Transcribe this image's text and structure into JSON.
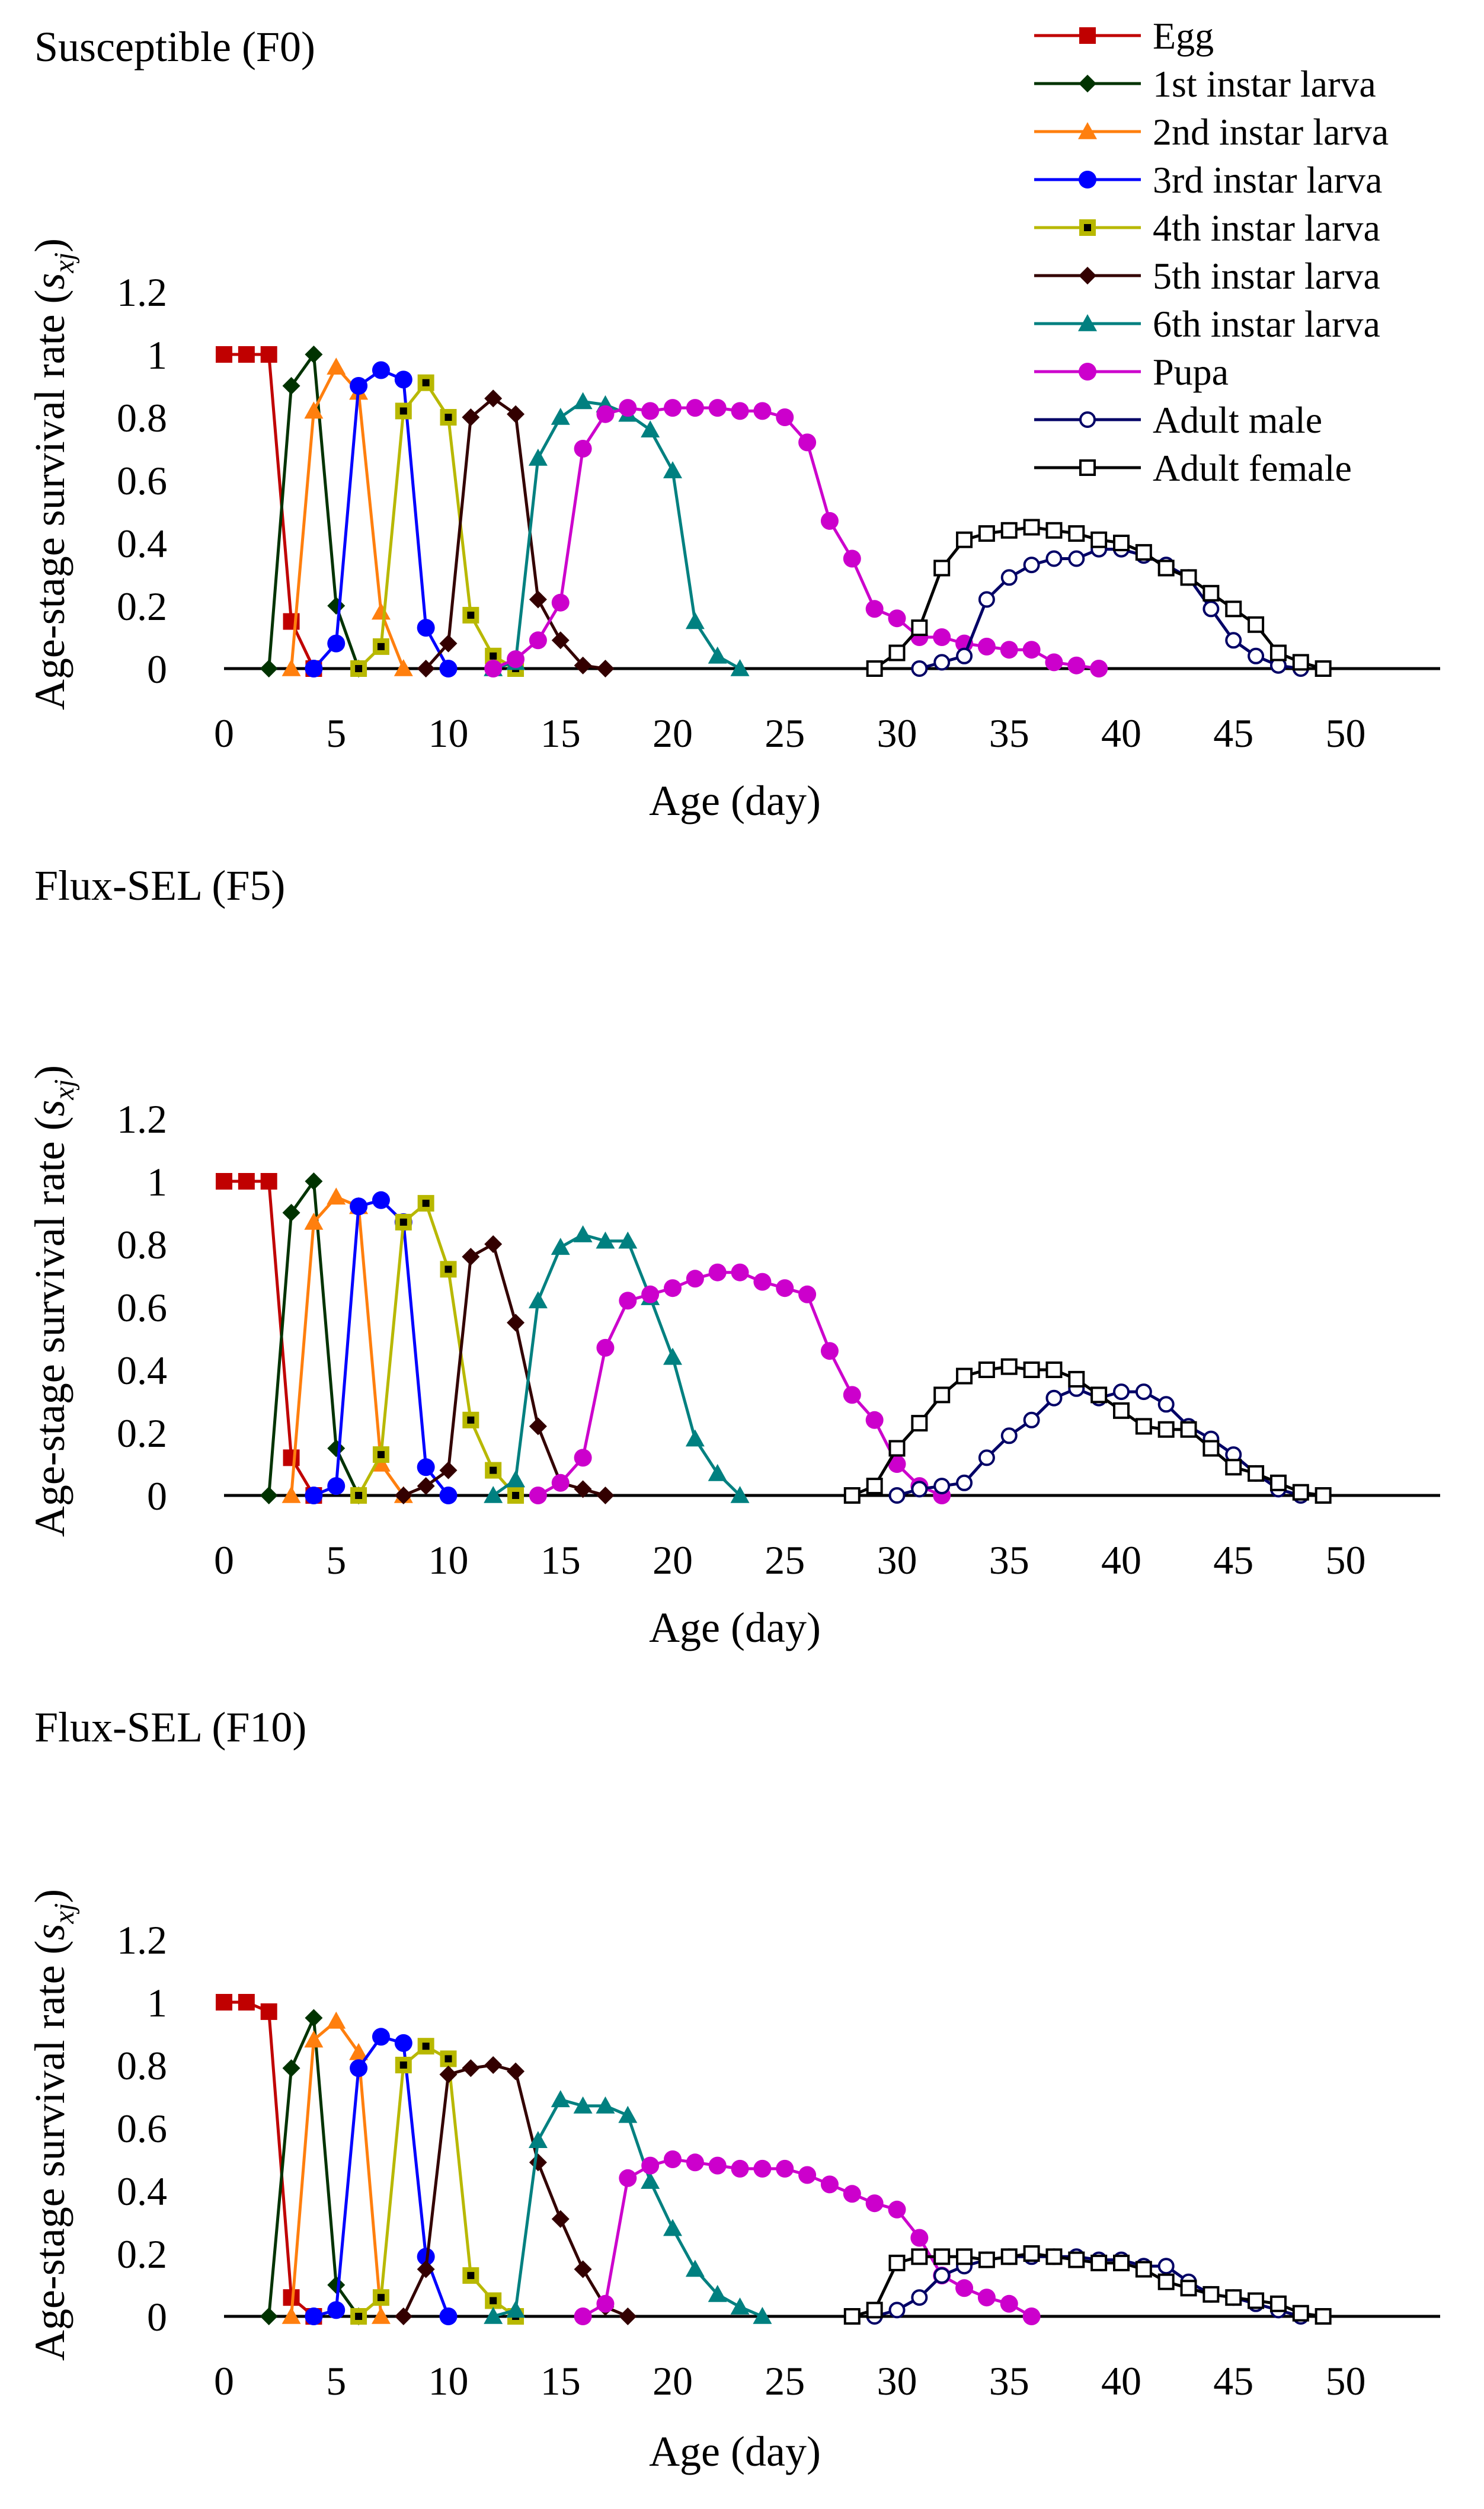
{
  "figure": {
    "legend": [
      {
        "name": "Egg",
        "color": "#C00000",
        "marker": "square"
      },
      {
        "name": "1st instar larva",
        "color": "#003300",
        "marker": "diamond"
      },
      {
        "name": "2nd instar larva",
        "color": "#FF7F0E",
        "marker": "triangle"
      },
      {
        "name": "3rd instar larva",
        "color": "#0000FF",
        "marker": "circle"
      },
      {
        "name": "4th instar larva",
        "color": "#B8B800",
        "marker": "square-dot"
      },
      {
        "name": "5th instar larva",
        "color": "#330000",
        "marker": "diamond"
      },
      {
        "name": "6th instar larva",
        "color": "#008080",
        "marker": "triangle"
      },
      {
        "name": "Pupa",
        "color": "#CC00CC",
        "marker": "circle"
      },
      {
        "name": "Adult male",
        "color": "#000066",
        "marker": "open-circle"
      },
      {
        "name": "Adult female",
        "color": "#000000",
        "marker": "open-square"
      }
    ]
  },
  "chart_data": [
    {
      "type": "line",
      "title": "Susceptible (F0)",
      "xlabel": "Age (day)",
      "ylabel": "Age-stage survival rate (s_xj)",
      "ylabel_main": "Age-stage survival rate (",
      "ylabel_sub": "xj",
      "ylabel_s": "s",
      "ylabel_end": ")",
      "xlim": [
        0,
        54
      ],
      "ylim": [
        0,
        1.2
      ],
      "xticks": [
        0,
        5,
        10,
        15,
        20,
        25,
        30,
        35,
        40,
        45,
        50
      ],
      "yticks": [
        0,
        0.2,
        0.4,
        0.6,
        0.8,
        1,
        1.2
      ],
      "series": [
        {
          "name": "Egg",
          "x": [
            0,
            1,
            2,
            3,
            4
          ],
          "y": [
            1,
            1,
            1,
            0.15,
            0
          ]
        },
        {
          "name": "1st instar larva",
          "x": [
            2,
            3,
            4,
            5,
            6
          ],
          "y": [
            0,
            0.9,
            1,
            0.2,
            0
          ]
        },
        {
          "name": "2nd instar larva",
          "x": [
            3,
            4,
            5,
            6,
            7,
            8
          ],
          "y": [
            0,
            0.82,
            0.96,
            0.88,
            0.18,
            0
          ]
        },
        {
          "name": "3rd instar larva",
          "x": [
            4,
            5,
            6,
            7,
            8,
            9,
            10
          ],
          "y": [
            0,
            0.08,
            0.9,
            0.95,
            0.92,
            0.13,
            0
          ]
        },
        {
          "name": "4th instar larva",
          "x": [
            6,
            7,
            8,
            9,
            10,
            11,
            12,
            13
          ],
          "y": [
            0,
            0.07,
            0.82,
            0.91,
            0.8,
            0.17,
            0.04,
            0
          ]
        },
        {
          "name": "5th instar larva",
          "x": [
            9,
            10,
            11,
            12,
            13,
            14,
            15,
            16,
            17
          ],
          "y": [
            0,
            0.08,
            0.8,
            0.86,
            0.81,
            0.22,
            0.09,
            0.01,
            0
          ]
        },
        {
          "name": "6th instar larva",
          "x": [
            12,
            13,
            14,
            15,
            16,
            17,
            18,
            19,
            20,
            21,
            22,
            23
          ],
          "y": [
            0,
            0.02,
            0.67,
            0.8,
            0.85,
            0.84,
            0.81,
            0.76,
            0.63,
            0.15,
            0.04,
            0
          ]
        },
        {
          "name": "Pupa",
          "x": [
            12,
            13,
            14,
            15,
            16,
            17,
            18,
            19,
            20,
            21,
            22,
            23,
            24,
            25,
            26,
            27,
            28,
            29,
            30,
            31,
            32,
            33,
            34,
            35,
            36,
            37,
            38,
            39
          ],
          "y": [
            0,
            0.03,
            0.09,
            0.21,
            0.7,
            0.81,
            0.83,
            0.82,
            0.83,
            0.83,
            0.83,
            0.82,
            0.82,
            0.8,
            0.72,
            0.47,
            0.35,
            0.19,
            0.16,
            0.1,
            0.1,
            0.08,
            0.07,
            0.06,
            0.06,
            0.02,
            0.01,
            0
          ]
        },
        {
          "name": "Adult male",
          "x": [
            31,
            32,
            33,
            34,
            35,
            36,
            37,
            38,
            39,
            40,
            41,
            42,
            43,
            44,
            45,
            46,
            47,
            48
          ],
          "y": [
            0,
            0.02,
            0.04,
            0.22,
            0.29,
            0.33,
            0.35,
            0.35,
            0.38,
            0.38,
            0.36,
            0.33,
            0.29,
            0.19,
            0.09,
            0.04,
            0.01,
            0
          ]
        },
        {
          "name": "Adult female",
          "x": [
            29,
            30,
            31,
            32,
            33,
            34,
            35,
            36,
            37,
            38,
            39,
            40,
            41,
            42,
            43,
            44,
            45,
            46,
            47,
            48,
            49
          ],
          "y": [
            0,
            0.05,
            0.13,
            0.32,
            0.41,
            0.43,
            0.44,
            0.45,
            0.44,
            0.43,
            0.41,
            0.4,
            0.37,
            0.32,
            0.29,
            0.24,
            0.19,
            0.14,
            0.05,
            0.02,
            0
          ]
        }
      ]
    },
    {
      "type": "line",
      "title": "Flux-SEL (F5)",
      "xlabel": "Age (day)",
      "ylabel": "Age-stage survival rate (s_xj)",
      "ylabel_main": "Age-stage survival rate (",
      "ylabel_sub": "xj",
      "ylabel_s": "s",
      "ylabel_end": ")",
      "xlim": [
        0,
        54
      ],
      "ylim": [
        0,
        1.2
      ],
      "xticks": [
        0,
        5,
        10,
        15,
        20,
        25,
        30,
        35,
        40,
        45,
        50
      ],
      "yticks": [
        0,
        0.2,
        0.4,
        0.6,
        0.8,
        1,
        1.2
      ],
      "series": [
        {
          "name": "Egg",
          "x": [
            0,
            1,
            2,
            3,
            4
          ],
          "y": [
            1,
            1,
            1,
            0.12,
            0
          ]
        },
        {
          "name": "1st instar larva",
          "x": [
            2,
            3,
            4,
            5,
            6
          ],
          "y": [
            0,
            0.9,
            1,
            0.15,
            0
          ]
        },
        {
          "name": "2nd instar larva",
          "x": [
            3,
            4,
            5,
            6,
            7,
            8
          ],
          "y": [
            0,
            0.87,
            0.95,
            0.92,
            0.1,
            0
          ]
        },
        {
          "name": "3rd instar larva",
          "x": [
            4,
            5,
            6,
            7,
            8,
            9,
            10
          ],
          "y": [
            0,
            0.03,
            0.92,
            0.94,
            0.87,
            0.09,
            0
          ]
        },
        {
          "name": "4th instar larva",
          "x": [
            6,
            7,
            8,
            9,
            10,
            11,
            12,
            13
          ],
          "y": [
            0,
            0.13,
            0.87,
            0.93,
            0.72,
            0.24,
            0.08,
            0
          ]
        },
        {
          "name": "5th instar larva",
          "x": [
            8,
            9,
            10,
            11,
            12,
            13,
            14,
            15,
            16,
            17
          ],
          "y": [
            0,
            0.03,
            0.08,
            0.76,
            0.8,
            0.55,
            0.22,
            0.04,
            0.02,
            0
          ]
        },
        {
          "name": "6th instar larva",
          "x": [
            12,
            13,
            14,
            15,
            16,
            17,
            18,
            19,
            20,
            21,
            22,
            23
          ],
          "y": [
            0,
            0.05,
            0.62,
            0.79,
            0.83,
            0.81,
            0.81,
            0.63,
            0.44,
            0.18,
            0.07,
            0
          ]
        },
        {
          "name": "Pupa",
          "x": [
            14,
            15,
            16,
            17,
            18,
            19,
            20,
            21,
            22,
            23,
            24,
            25,
            26,
            27,
            28,
            29,
            30,
            31,
            32
          ],
          "y": [
            0,
            0.04,
            0.12,
            0.47,
            0.62,
            0.64,
            0.66,
            0.69,
            0.71,
            0.71,
            0.68,
            0.66,
            0.64,
            0.46,
            0.32,
            0.24,
            0.1,
            0.03,
            0
          ]
        },
        {
          "name": "Adult male",
          "x": [
            30,
            31,
            32,
            33,
            34,
            35,
            36,
            37,
            38,
            39,
            40,
            41,
            42,
            43,
            44,
            45,
            46,
            47,
            48
          ],
          "y": [
            0,
            0.02,
            0.03,
            0.04,
            0.12,
            0.19,
            0.24,
            0.31,
            0.34,
            0.31,
            0.33,
            0.33,
            0.29,
            0.22,
            0.18,
            0.13,
            0.07,
            0.02,
            0
          ]
        },
        {
          "name": "Adult female",
          "x": [
            28,
            29,
            30,
            31,
            32,
            33,
            34,
            35,
            36,
            37,
            38,
            39,
            40,
            41,
            42,
            43,
            44,
            45,
            46,
            47,
            48,
            49
          ],
          "y": [
            0,
            0.03,
            0.15,
            0.23,
            0.32,
            0.38,
            0.4,
            0.41,
            0.4,
            0.4,
            0.37,
            0.32,
            0.27,
            0.22,
            0.21,
            0.21,
            0.15,
            0.09,
            0.07,
            0.04,
            0.01,
            0
          ]
        }
      ]
    },
    {
      "type": "line",
      "title": "Flux-SEL (F10)",
      "xlabel": "Age (day)",
      "ylabel": "Age-stage survival rate (s_xj)",
      "ylabel_main": "Age-stage survival rate (",
      "ylabel_sub": "xj",
      "ylabel_s": "s",
      "ylabel_end": ")",
      "xlim": [
        0,
        54
      ],
      "ylim": [
        0,
        1.2
      ],
      "xticks": [
        0,
        5,
        10,
        15,
        20,
        25,
        30,
        35,
        40,
        45,
        50
      ],
      "yticks": [
        0,
        0.2,
        0.4,
        0.6,
        0.8,
        1,
        1.2
      ],
      "series": [
        {
          "name": "Egg",
          "x": [
            0,
            1,
            2,
            3,
            4
          ],
          "y": [
            1,
            1,
            0.97,
            0.06,
            0
          ]
        },
        {
          "name": "1st instar larva",
          "x": [
            2,
            3,
            4,
            5,
            6
          ],
          "y": [
            0,
            0.79,
            0.95,
            0.1,
            0
          ]
        },
        {
          "name": "2nd instar larva",
          "x": [
            3,
            4,
            5,
            6,
            7
          ],
          "y": [
            0,
            0.88,
            0.94,
            0.84,
            0
          ]
        },
        {
          "name": "3rd instar larva",
          "x": [
            4,
            5,
            6,
            7,
            8,
            9,
            10
          ],
          "y": [
            0,
            0.02,
            0.79,
            0.89,
            0.87,
            0.19,
            0
          ]
        },
        {
          "name": "4th instar larva",
          "x": [
            6,
            7,
            8,
            9,
            10,
            11,
            12,
            13
          ],
          "y": [
            0,
            0.06,
            0.8,
            0.86,
            0.82,
            0.13,
            0.05,
            0
          ]
        },
        {
          "name": "5th instar larva",
          "x": [
            8,
            9,
            10,
            11,
            12,
            13,
            14,
            15,
            16,
            17,
            18
          ],
          "y": [
            0,
            0.15,
            0.77,
            0.79,
            0.8,
            0.78,
            0.49,
            0.31,
            0.15,
            0.03,
            0
          ]
        },
        {
          "name": "6th instar larva",
          "x": [
            12,
            13,
            14,
            15,
            16,
            17,
            18,
            19,
            20,
            21,
            22,
            23,
            24
          ],
          "y": [
            0,
            0.02,
            0.56,
            0.69,
            0.67,
            0.67,
            0.64,
            0.43,
            0.28,
            0.15,
            0.07,
            0.03,
            0
          ]
        },
        {
          "name": "Pupa",
          "x": [
            16,
            17,
            18,
            19,
            20,
            21,
            22,
            23,
            24,
            25,
            26,
            27,
            28,
            29,
            30,
            31,
            32,
            33,
            34,
            35,
            36
          ],
          "y": [
            0,
            0.04,
            0.44,
            0.48,
            0.5,
            0.49,
            0.48,
            0.47,
            0.47,
            0.47,
            0.45,
            0.42,
            0.39,
            0.36,
            0.34,
            0.25,
            0.13,
            0.09,
            0.06,
            0.04,
            0
          ]
        },
        {
          "name": "Adult male",
          "x": [
            29,
            30,
            31,
            32,
            33,
            34,
            35,
            36,
            37,
            38,
            39,
            40,
            41,
            42,
            43,
            44,
            45,
            46,
            47,
            48
          ],
          "y": [
            0,
            0.02,
            0.06,
            0.13,
            0.16,
            0.18,
            0.19,
            0.19,
            0.19,
            0.19,
            0.18,
            0.18,
            0.16,
            0.16,
            0.11,
            0.07,
            0.06,
            0.04,
            0.02,
            0
          ]
        },
        {
          "name": "Adult female",
          "x": [
            28,
            29,
            30,
            31,
            32,
            33,
            34,
            35,
            36,
            37,
            38,
            39,
            40,
            41,
            42,
            43,
            44,
            45,
            46,
            47,
            48,
            49
          ],
          "y": [
            0,
            0.02,
            0.17,
            0.19,
            0.19,
            0.19,
            0.18,
            0.19,
            0.2,
            0.19,
            0.18,
            0.17,
            0.17,
            0.15,
            0.11,
            0.09,
            0.07,
            0.06,
            0.05,
            0.04,
            0.01,
            0
          ]
        }
      ]
    }
  ]
}
